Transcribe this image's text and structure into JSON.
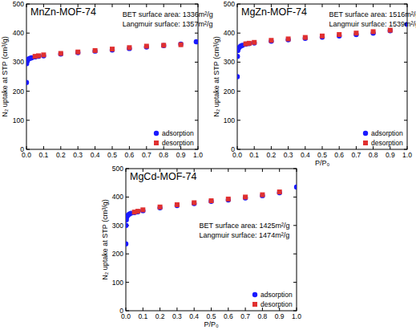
{
  "chart_data": [
    {
      "type": "scatter",
      "title": "MnZn-MOF-74",
      "annotations": [
        "BET surface area: 1336m²/g",
        "Langmuir surface: 1357m²/g"
      ],
      "y_label": "N₂ uptake at STP (cm³/g)",
      "xlim": [
        0,
        1
      ],
      "ylim": [
        0,
        500
      ],
      "xticks": [
        {
          "value": 0,
          "label": "0.0"
        },
        0.1,
        0.2,
        0.3,
        0.4,
        0.5,
        0.6,
        0.7,
        0.8,
        0.9,
        {
          "value": 1,
          "label": "1.0"
        }
      ],
      "yticks": [
        0,
        100,
        200,
        300,
        400,
        500
      ],
      "legend": "lower right",
      "series": [
        {
          "name": "adsorption",
          "color": "#1a1aff",
          "marker": "circle",
          "x": [
            0.0001,
            0.001,
            0.003,
            0.005,
            0.01,
            0.02,
            0.03,
            0.05,
            0.07,
            0.1,
            0.2,
            0.3,
            0.4,
            0.5,
            0.6,
            0.7,
            0.8,
            0.9,
            0.99
          ],
          "values": [
            230,
            295,
            303,
            306,
            310,
            313,
            315,
            318,
            320,
            322,
            328,
            333,
            338,
            342,
            347,
            352,
            357,
            362,
            370
          ]
        },
        {
          "name": "desorption",
          "color": "#e03030",
          "marker": "square",
          "x": [
            0.9,
            0.8,
            0.7,
            0.6,
            0.5,
            0.4,
            0.3,
            0.2,
            0.1,
            0.07,
            0.05
          ],
          "values": [
            360,
            358,
            355,
            350,
            345,
            340,
            335,
            330,
            325,
            322,
            320
          ]
        }
      ]
    },
    {
      "type": "scatter",
      "title": "MgZn-MOF-74",
      "annotations": [
        "BET surface area: 1516m²/g",
        "Langmuir surface: 1539m²/g"
      ],
      "x_label": "P/P₀",
      "y_label": "N₂ uptake at STP (cm³/g)",
      "xlim": [
        0,
        1
      ],
      "ylim": [
        0,
        500
      ],
      "xticks": [
        {
          "value": 0,
          "label": "0.0"
        },
        0.1,
        0.2,
        0.3,
        0.4,
        0.5,
        0.6,
        0.7,
        0.8,
        0.9,
        {
          "value": 1,
          "label": "1.0"
        }
      ],
      "yticks": [
        0,
        100,
        200,
        300,
        400,
        500
      ],
      "legend": "lower right",
      "series": [
        {
          "name": "adsorption",
          "color": "#1a1aff",
          "marker": "circle",
          "x": [
            0.0001,
            0.001,
            0.003,
            0.005,
            0.01,
            0.02,
            0.03,
            0.05,
            0.07,
            0.1,
            0.2,
            0.3,
            0.4,
            0.5,
            0.6,
            0.7,
            0.8,
            0.9,
            1.0
          ],
          "values": [
            250,
            320,
            340,
            345,
            350,
            355,
            358,
            362,
            364,
            366,
            372,
            377,
            382,
            386,
            390,
            395,
            400,
            408,
            430
          ]
        },
        {
          "name": "desorption",
          "color": "#e03030",
          "marker": "square",
          "x": [
            0.9,
            0.8,
            0.7,
            0.6,
            0.5,
            0.4,
            0.3,
            0.2,
            0.1,
            0.07,
            0.05
          ],
          "values": [
            410,
            405,
            400,
            395,
            390,
            385,
            380,
            375,
            368,
            365,
            363
          ]
        }
      ]
    },
    {
      "type": "scatter",
      "title": "MgCd-MOF-74",
      "annotations": [
        "BET surface area: 1425m²/g",
        "Langmuir surface: 1474m²/g"
      ],
      "x_label": "P/P₀",
      "y_label": "N₂ uptake at STP (cm³/g)",
      "xlim": [
        0,
        1
      ],
      "ylim": [
        0,
        500
      ],
      "xticks": [
        {
          "value": 0,
          "label": "0.0"
        },
        0.1,
        0.2,
        0.3,
        0.4,
        0.5,
        0.6,
        0.7,
        0.8,
        0.9,
        {
          "value": 1,
          "label": "1.0"
        }
      ],
      "yticks": [
        0,
        100,
        200,
        300,
        400,
        500
      ],
      "legend": "lower right",
      "series": [
        {
          "name": "adsorption",
          "color": "#1a1aff",
          "marker": "circle",
          "x": [
            0.0001,
            0.001,
            0.003,
            0.005,
            0.01,
            0.02,
            0.03,
            0.05,
            0.07,
            0.1,
            0.2,
            0.3,
            0.4,
            0.5,
            0.6,
            0.7,
            0.8,
            0.9,
            1.0
          ],
          "values": [
            235,
            300,
            320,
            330,
            335,
            340,
            343,
            345,
            348,
            352,
            362,
            370,
            377,
            385,
            390,
            397,
            405,
            415,
            435
          ]
        },
        {
          "name": "desorption",
          "color": "#e03030",
          "marker": "square",
          "x": [
            0.9,
            0.8,
            0.7,
            0.6,
            0.5,
            0.4,
            0.3,
            0.2,
            0.1,
            0.07,
            0.05
          ],
          "values": [
            418,
            408,
            400,
            393,
            387,
            380,
            373,
            365,
            355,
            350,
            347
          ]
        }
      ]
    }
  ]
}
